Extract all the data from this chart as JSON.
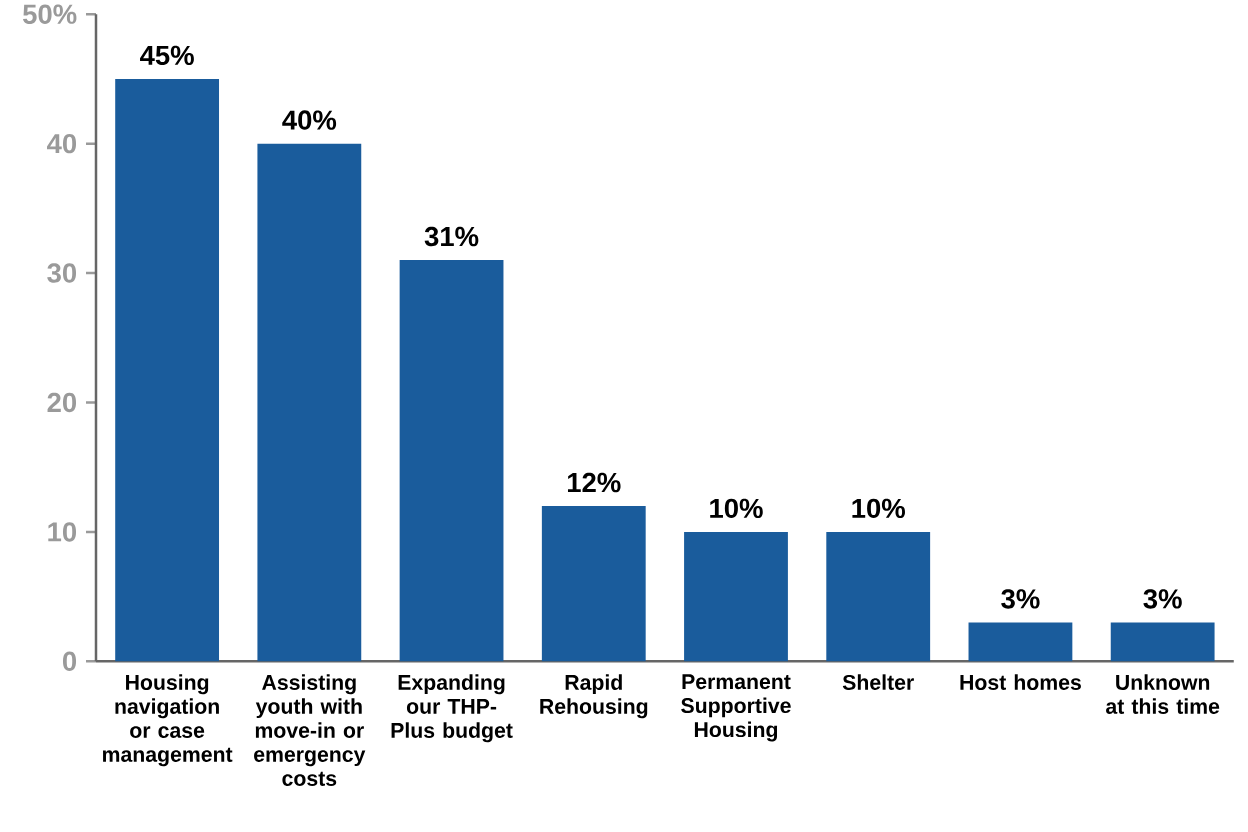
{
  "chart_data": {
    "type": "bar",
    "categories": [
      "Housing navigation or case management",
      "Assisting youth with move-in or emergency costs",
      "Expanding our THP-Plus budget",
      "Rapid Rehousing",
      "Permanent Supportive Housing",
      "Shelter",
      "Host homes",
      "Unknown at this time"
    ],
    "values": [
      45,
      40,
      31,
      12,
      10,
      10,
      3,
      3
    ],
    "value_labels": [
      "45%",
      "40%",
      "31%",
      "12%",
      "10%",
      "10%",
      "3%",
      "3%"
    ],
    "color": "#1a5c9c",
    "ylim": [
      0,
      50
    ],
    "yticks": [
      0,
      10,
      20,
      30,
      40,
      {
        "value": 50,
        "label": "50%"
      }
    ]
  }
}
